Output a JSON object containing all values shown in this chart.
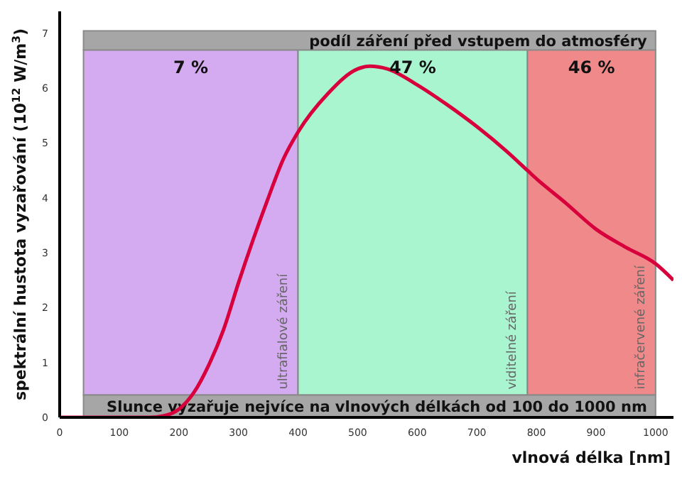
{
  "chart_data": {
    "type": "line",
    "title": "podíl záření před vstupem do atmosféry",
    "xlabel": "vlnová délka [nm]",
    "ylabel": "spektrální hustota vyzařování (10$^{12}$ W/m$^{3}$)",
    "annotations": [
      "Slunce vyzařuje nejvíce na vlnových délkách  od 100 do 1000 nm",
      "ultrafialové záření",
      "viditelné záření",
      "infračervené záření"
    ],
    "x": [
      0,
      50,
      100,
      150,
      175,
      200,
      225,
      250,
      275,
      300,
      325,
      350,
      375,
      400,
      450,
      500,
      520,
      550,
      600,
      650,
      700,
      750,
      785,
      800,
      850,
      900,
      950,
      1000,
      1030
    ],
    "series": [
      {
        "color": "#d8003c",
        "values": [
          0,
          0,
          0,
          0,
          0.03,
          0.15,
          0.45,
          0.95,
          1.6,
          2.45,
          3.25,
          4.0,
          4.7,
          5.2,
          5.9,
          6.35,
          6.4,
          6.35,
          6.06,
          5.7,
          5.3,
          4.85,
          4.5,
          4.35,
          3.9,
          3.43,
          3.1,
          2.8,
          2.5
        ]
      }
    ],
    "xlim": [
      0,
      1030
    ],
    "xticks": [
      0,
      100,
      200,
      300,
      400,
      500,
      600,
      700,
      800,
      900,
      1000
    ],
    "ylim": [
      0,
      7.4
    ],
    "yticks": [
      0,
      1,
      2,
      3,
      4,
      5,
      6,
      7
    ],
    "bands": [
      {
        "axis": "x",
        "from": 40,
        "to": 400,
        "label": "7 %",
        "color": "#d4aaf0"
      },
      {
        "axis": "x",
        "from": 400,
        "to": 785,
        "label": "47 %",
        "color": "#a8f5d0"
      },
      {
        "axis": "x",
        "from": 785,
        "to": 1000,
        "label": "46 %",
        "color": "#f08a8a"
      }
    ],
    "grid": false,
    "legend": false,
    "marker": "none",
    "line_style": "solid"
  }
}
